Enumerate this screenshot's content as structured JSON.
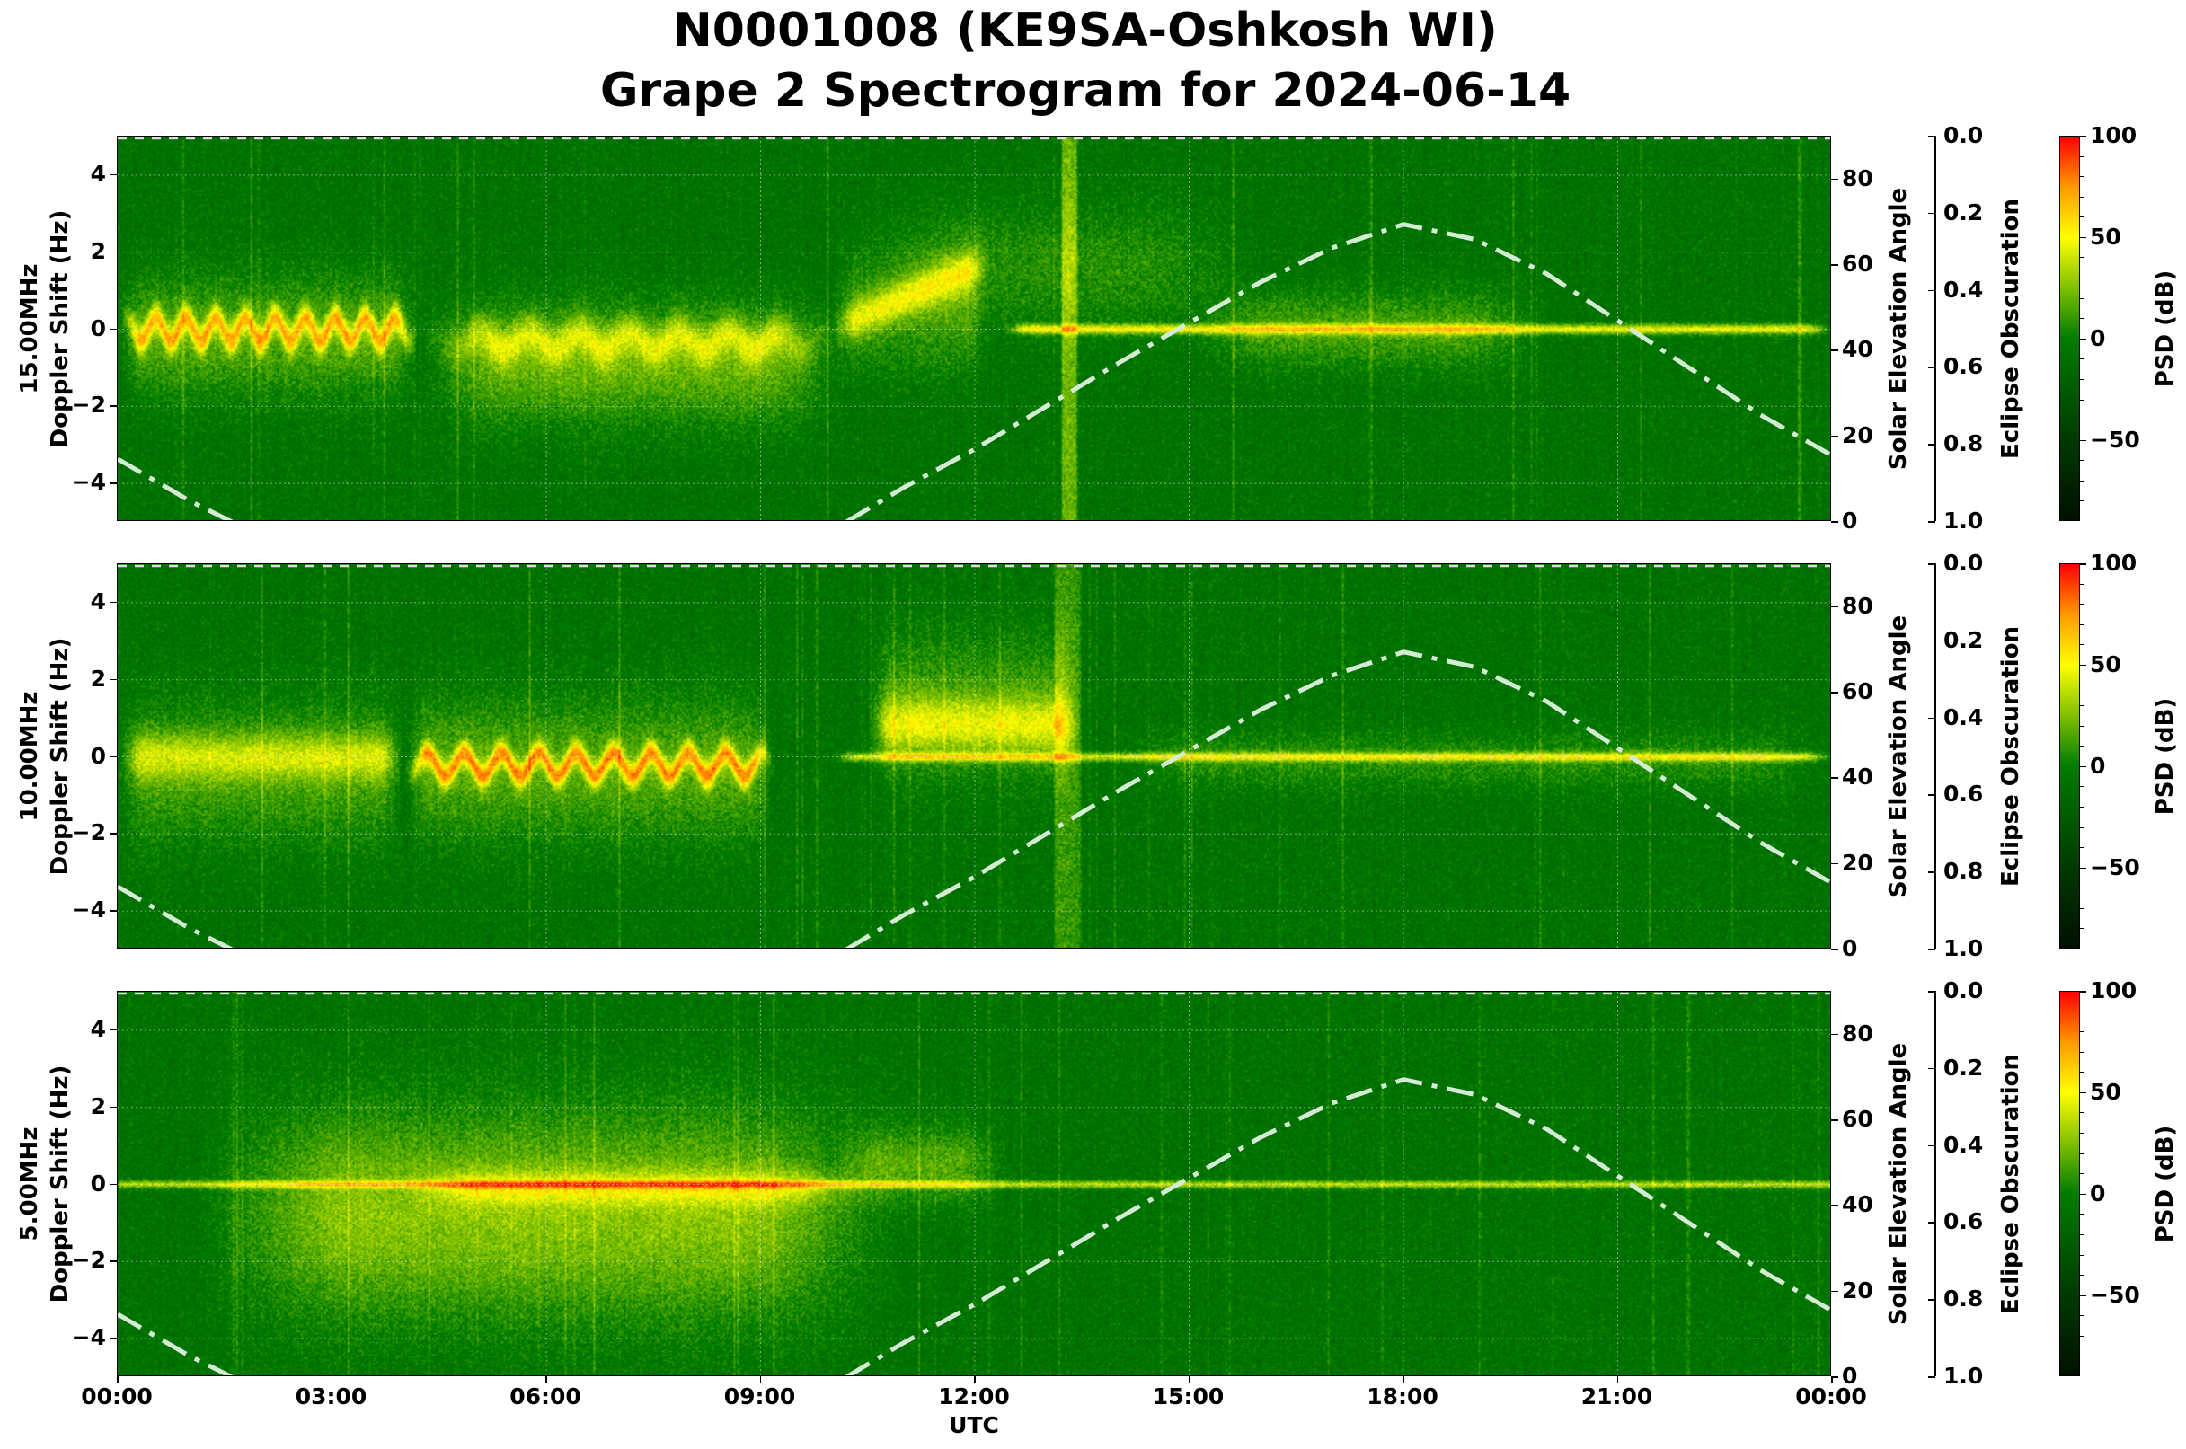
{
  "title": {
    "line1": "N0001008 (KE9SA-Oshkosh WI)",
    "line2": "Grape 2 Spectrogram for 2024-06-14"
  },
  "chart_data": {
    "type": "heatmap",
    "xlabel": "UTC",
    "x_ticks": [
      "00:00",
      "03:00",
      "06:00",
      "09:00",
      "12:00",
      "15:00",
      "18:00",
      "21:00",
      "00:00"
    ],
    "xlim_hours": [
      0,
      24
    ],
    "grid": true,
    "colormap": {
      "label": "PSD (dB)",
      "range": [
        -90,
        100
      ],
      "ticks": [
        "100",
        "50",
        "0",
        "−50"
      ],
      "tick_values": [
        100,
        50,
        0,
        -50
      ],
      "stops": [
        {
          "value": -90,
          "color": "#001000"
        },
        {
          "value": -50,
          "color": "#003a00"
        },
        {
          "value": 0,
          "color": "#007d00"
        },
        {
          "value": 25,
          "color": "#7fc000"
        },
        {
          "value": 50,
          "color": "#ffff00"
        },
        {
          "value": 75,
          "color": "#ff9a00"
        },
        {
          "value": 100,
          "color": "#ff0000"
        }
      ]
    },
    "left_axis": {
      "label": "Doppler Shift (Hz)",
      "ylim": [
        -5,
        5
      ],
      "ticks": [
        "−4",
        "−2",
        "0",
        "2",
        "4"
      ],
      "tick_values": [
        -4,
        -2,
        0,
        2,
        4
      ]
    },
    "right_axis": {
      "label": "Solar Elevation Angle",
      "ylim": [
        0,
        90
      ],
      "ticks": [
        "0",
        "20",
        "40",
        "60",
        "80"
      ],
      "tick_values": [
        0,
        20,
        40,
        60,
        80
      ]
    },
    "obscuration_axis": {
      "label": "Eclipse Obscuration",
      "ylim": [
        1.0,
        0.0
      ],
      "ticks": [
        "0.0",
        "0.2",
        "0.4",
        "0.6",
        "0.8",
        "1.0"
      ],
      "tick_values": [
        0,
        0.2,
        0.4,
        0.6,
        0.8,
        1.0
      ]
    },
    "panels": [
      {
        "frequency_label": "15.00MHz"
      },
      {
        "frequency_label": "10.00MHz"
      },
      {
        "frequency_label": "5.00MHz"
      }
    ],
    "solar_elevation": {
      "style": "dash-dot",
      "color": "#d4ecd4",
      "hours": [
        0,
        1,
        1.6,
        10.2,
        11,
        12,
        13,
        14,
        15,
        16,
        17,
        18,
        19,
        20,
        21,
        22,
        23,
        24
      ],
      "degrees": [
        14.7,
        5,
        0,
        0,
        8,
        17,
        27,
        37,
        46.5,
        56,
        64,
        69.5,
        66,
        58,
        47,
        36,
        25,
        15.5
      ]
    },
    "eclipse_obscuration": {
      "value": 0.0,
      "style": "dashed",
      "color": "#dddddd"
    }
  }
}
